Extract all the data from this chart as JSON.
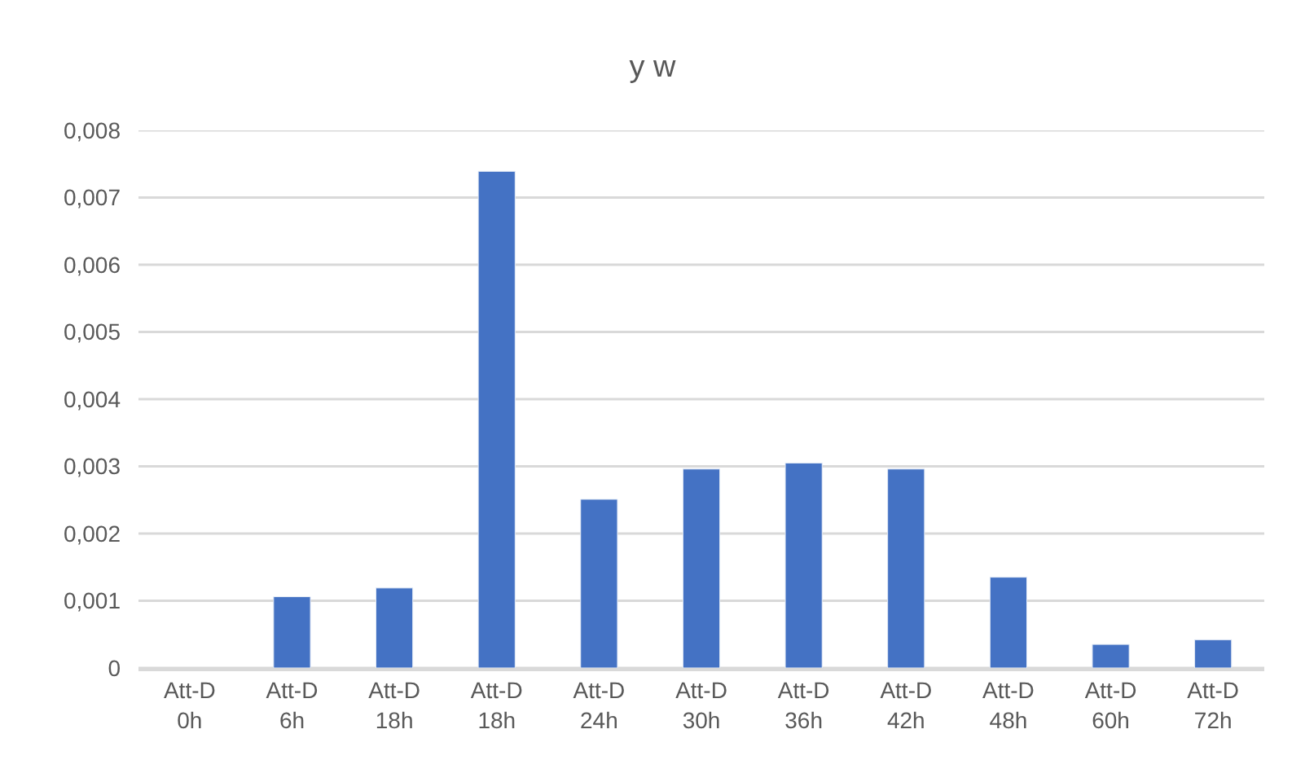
{
  "chart_data": {
    "type": "bar",
    "title": "y w",
    "categories": [
      "Att-D 0h",
      "Att-D 6h",
      "Att-D 18h",
      "Att-D 18h",
      "Att-D 24h",
      "Att-D 30h",
      "Att-D 36h",
      "Att-D 42h",
      "Att-D 48h",
      "Att-D 60h",
      "Att-D 72h"
    ],
    "values": [
      null,
      0.00106,
      0.00119,
      0.00739,
      0.00251,
      0.00296,
      0.00305,
      0.00296,
      0.00135,
      0.00035,
      0.00042
    ],
    "color": "#4472c4",
    "ylim": [
      0,
      0.008
    ],
    "yticks": [
      {
        "value": 0,
        "label": "0"
      },
      {
        "value": 0.001,
        "label": "0,001"
      },
      {
        "value": 0.002,
        "label": "0,002"
      },
      {
        "value": 0.003,
        "label": "0,003"
      },
      {
        "value": 0.004,
        "label": "0,004"
      },
      {
        "value": 0.005,
        "label": "0,005"
      },
      {
        "value": 0.006,
        "label": "0,006"
      },
      {
        "value": 0.007,
        "label": "0,007"
      },
      {
        "value": 0.008,
        "label": "0,008"
      }
    ],
    "grid": "y"
  }
}
